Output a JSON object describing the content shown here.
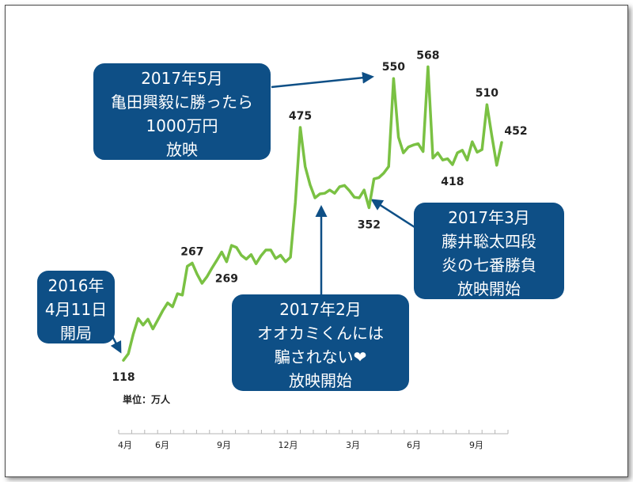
{
  "chart_data": {
    "type": "line",
    "title": "",
    "xlabel": "",
    "ylabel": "",
    "unit_label": "単位：万人",
    "ylim": [
      100,
      600
    ],
    "x_ticks": [
      "4月",
      "6月",
      "9月",
      "12月",
      "3月",
      "6月",
      "9月"
    ],
    "series": [
      {
        "color": "#7ac143",
        "values": [
          118,
          128,
          158,
          182,
          172,
          181,
          166,
          180,
          194,
          206,
          200,
          220,
          218,
          262,
          267,
          250,
          236,
          246,
          259,
          271,
          284,
          269,
          294,
          291,
          279,
          273,
          280,
          266,
          278,
          287,
          287,
          274,
          279,
          269,
          276,
          360,
          475,
          415,
          387,
          367,
          373,
          374,
          379,
          374,
          384,
          386,
          378,
          368,
          367,
          379,
          352,
          396,
          398,
          405,
          415,
          550,
          460,
          436,
          445,
          448,
          450,
          438,
          568,
          428,
          436,
          425,
          427,
          418,
          436,
          440,
          425,
          453,
          437,
          441,
          510,
          462,
          417,
          452
        ]
      }
    ],
    "data_labels": [
      "118",
      "267",
      "269",
      "475",
      "352",
      "550",
      "568",
      "418",
      "510",
      "452"
    ],
    "annotations": [
      {
        "lines": [
          "2016年",
          "4月11日",
          "開局"
        ]
      },
      {
        "lines": [
          "2017年5月",
          "亀田興毅に勝ったら",
          "1000万円",
          "放映"
        ]
      },
      {
        "lines": [
          "2017年2月",
          "オオカミくんには",
          "騙されない❤",
          "放映開始"
        ]
      },
      {
        "lines": [
          "2017年3月",
          "藤井聡太四段",
          "炎の七番勝負",
          "放映開始"
        ]
      }
    ]
  }
}
